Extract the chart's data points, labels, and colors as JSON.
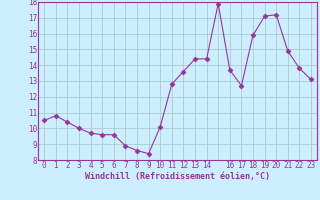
{
  "x": [
    0,
    1,
    2,
    3,
    4,
    5,
    6,
    7,
    8,
    9,
    10,
    11,
    12,
    13,
    14,
    15,
    16,
    17,
    18,
    19,
    20,
    21,
    22,
    23
  ],
  "y": [
    10.5,
    10.8,
    10.4,
    10.0,
    9.7,
    9.6,
    9.6,
    8.9,
    8.6,
    8.4,
    10.1,
    12.8,
    13.6,
    14.4,
    14.4,
    17.9,
    13.7,
    12.7,
    15.9,
    17.1,
    17.2,
    14.9,
    13.8,
    13.1
  ],
  "line_color": "#993399",
  "marker": "D",
  "marker_size": 2.5,
  "bg_color": "#cceeff",
  "grid_color": "#aacccc",
  "axis_label_color": "#993399",
  "tick_color": "#993399",
  "xlabel": "Windchill (Refroidissement éolien,°C)",
  "ylim": [
    8,
    18
  ],
  "xlim": [
    -0.5,
    23.5
  ],
  "yticks": [
    8,
    9,
    10,
    11,
    12,
    13,
    14,
    15,
    16,
    17,
    18
  ],
  "xticks": [
    0,
    1,
    2,
    3,
    4,
    5,
    6,
    7,
    8,
    9,
    10,
    11,
    12,
    13,
    14,
    15,
    16,
    17,
    18,
    19,
    20,
    21,
    22,
    23
  ],
  "xtick_labels": [
    "0",
    "1",
    "2",
    "3",
    "4",
    "5",
    "6",
    "7",
    "8",
    "9",
    "10",
    "11",
    "12",
    "13",
    "14",
    "",
    "16",
    "17",
    "18",
    "19",
    "20",
    "21",
    "22",
    "23"
  ]
}
